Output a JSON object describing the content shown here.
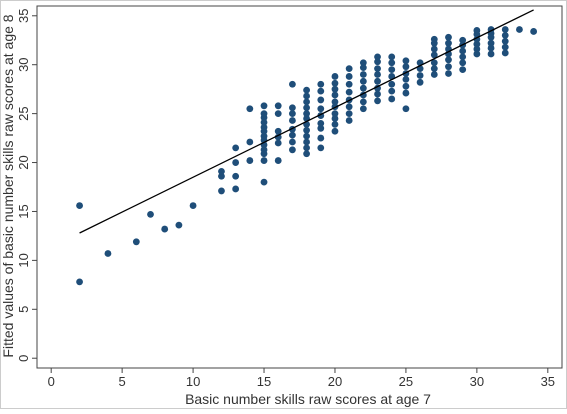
{
  "chart_data": {
    "type": "scatter",
    "title": "",
    "xlabel": "Basic number skills raw scores at age 7",
    "ylabel": "Fitted values of basic number skills raw scores at age 8",
    "xlim": [
      -1,
      36
    ],
    "ylim": [
      -1,
      36
    ],
    "xticks": [
      0,
      5,
      10,
      15,
      20,
      25,
      30,
      35
    ],
    "yticks": [
      0,
      5,
      10,
      15,
      20,
      25,
      30,
      35
    ],
    "grid": false,
    "legend": "none",
    "colors": {
      "points": "#1f4e79",
      "fit_line": "#000000",
      "frame": "#444444",
      "background": "#ffffff"
    },
    "fit_line": {
      "x": [
        2,
        34
      ],
      "y": [
        12.8,
        35.6
      ]
    },
    "series": [
      {
        "type": "scatter",
        "points": [
          [
            2,
            7.8
          ],
          [
            2,
            15.6
          ],
          [
            4,
            10.7
          ],
          [
            6,
            11.9
          ],
          [
            7,
            14.7
          ],
          [
            8,
            13.2
          ],
          [
            9,
            13.6
          ],
          [
            10,
            15.6
          ],
          [
            12,
            17.1
          ],
          [
            12,
            18.6
          ],
          [
            12,
            19.1
          ],
          [
            13,
            17.3
          ],
          [
            13,
            18.6
          ],
          [
            13,
            20.0
          ],
          [
            13,
            21.5
          ],
          [
            14,
            20.2
          ],
          [
            14,
            22.1
          ],
          [
            14,
            25.5
          ],
          [
            15,
            18.0
          ],
          [
            15,
            20.2
          ],
          [
            15,
            20.9
          ],
          [
            15,
            21.3
          ],
          [
            15,
            21.8
          ],
          [
            15,
            22.3
          ],
          [
            15,
            22.7
          ],
          [
            15,
            23.2
          ],
          [
            15,
            23.6
          ],
          [
            15,
            24.1
          ],
          [
            15,
            24.6
          ],
          [
            15,
            25.0
          ],
          [
            15,
            25.8
          ],
          [
            16,
            20.2
          ],
          [
            16,
            22.0
          ],
          [
            16,
            22.6
          ],
          [
            16,
            23.2
          ],
          [
            16,
            25.0
          ],
          [
            16,
            25.8
          ],
          [
            17,
            21.3
          ],
          [
            17,
            22.1
          ],
          [
            17,
            22.8
          ],
          [
            17,
            23.4
          ],
          [
            17,
            24.3
          ],
          [
            17,
            25.0
          ],
          [
            17,
            25.6
          ],
          [
            17,
            28.0
          ],
          [
            18,
            20.9
          ],
          [
            18,
            21.5
          ],
          [
            18,
            22.1
          ],
          [
            18,
            22.7
          ],
          [
            18,
            23.3
          ],
          [
            18,
            23.9
          ],
          [
            18,
            24.5
          ],
          [
            18,
            25.0
          ],
          [
            18,
            25.6
          ],
          [
            18,
            26.2
          ],
          [
            18,
            26.8
          ],
          [
            18,
            27.4
          ],
          [
            19,
            21.5
          ],
          [
            19,
            22.5
          ],
          [
            19,
            23.5
          ],
          [
            19,
            24.0
          ],
          [
            19,
            24.8
          ],
          [
            19,
            25.5
          ],
          [
            19,
            26.4
          ],
          [
            19,
            27.3
          ],
          [
            19,
            28.0
          ],
          [
            20,
            23.2
          ],
          [
            20,
            23.9
          ],
          [
            20,
            24.5
          ],
          [
            20,
            25.0
          ],
          [
            20,
            25.7
          ],
          [
            20,
            26.2
          ],
          [
            20,
            26.9
          ],
          [
            20,
            27.5
          ],
          [
            20,
            28.1
          ],
          [
            20,
            28.8
          ],
          [
            21,
            24.3
          ],
          [
            21,
            25.0
          ],
          [
            21,
            25.7
          ],
          [
            21,
            26.4
          ],
          [
            21,
            27.2
          ],
          [
            21,
            28.0
          ],
          [
            21,
            28.8
          ],
          [
            21,
            29.6
          ],
          [
            22,
            25.5
          ],
          [
            22,
            26.2
          ],
          [
            22,
            26.9
          ],
          [
            22,
            27.6
          ],
          [
            22,
            28.3
          ],
          [
            22,
            29.0
          ],
          [
            22,
            29.7
          ],
          [
            22,
            30.2
          ],
          [
            23,
            26.3
          ],
          [
            23,
            27.0
          ],
          [
            23,
            27.6
          ],
          [
            23,
            28.3
          ],
          [
            23,
            29.0
          ],
          [
            23,
            29.6
          ],
          [
            23,
            30.3
          ],
          [
            23,
            30.8
          ],
          [
            24,
            26.5
          ],
          [
            24,
            27.3
          ],
          [
            24,
            28.0
          ],
          [
            24,
            28.8
          ],
          [
            24,
            29.5
          ],
          [
            24,
            30.2
          ],
          [
            24,
            30.8
          ],
          [
            25,
            25.5
          ],
          [
            25,
            27.1
          ],
          [
            25,
            27.8
          ],
          [
            25,
            28.5
          ],
          [
            25,
            29.1
          ],
          [
            25,
            29.8
          ],
          [
            25,
            30.4
          ],
          [
            26,
            28.2
          ],
          [
            26,
            28.9
          ],
          [
            26,
            29.6
          ],
          [
            26,
            30.2
          ],
          [
            27,
            29.0
          ],
          [
            27,
            29.6
          ],
          [
            27,
            30.2
          ],
          [
            27,
            31.0
          ],
          [
            27,
            31.6
          ],
          [
            27,
            32.2
          ],
          [
            27,
            32.6
          ],
          [
            28,
            29.1
          ],
          [
            28,
            29.8
          ],
          [
            28,
            30.5
          ],
          [
            28,
            31.1
          ],
          [
            28,
            31.6
          ],
          [
            28,
            32.2
          ],
          [
            28,
            32.8
          ],
          [
            29,
            29.5
          ],
          [
            29,
            30.2
          ],
          [
            29,
            30.8
          ],
          [
            29,
            31.4
          ],
          [
            29,
            32.0
          ],
          [
            29,
            32.5
          ],
          [
            30,
            31.1
          ],
          [
            30,
            31.6
          ],
          [
            30,
            32.1
          ],
          [
            30,
            32.6
          ],
          [
            30,
            33.1
          ],
          [
            30,
            33.5
          ],
          [
            31,
            31.1
          ],
          [
            31,
            31.7
          ],
          [
            31,
            32.2
          ],
          [
            31,
            32.8
          ],
          [
            31,
            33.2
          ],
          [
            31,
            33.6
          ],
          [
            32,
            31.2
          ],
          [
            32,
            31.8
          ],
          [
            32,
            32.4
          ],
          [
            32,
            33.0
          ],
          [
            32,
            33.6
          ],
          [
            33,
            33.6
          ],
          [
            34,
            33.4
          ]
        ]
      }
    ]
  }
}
